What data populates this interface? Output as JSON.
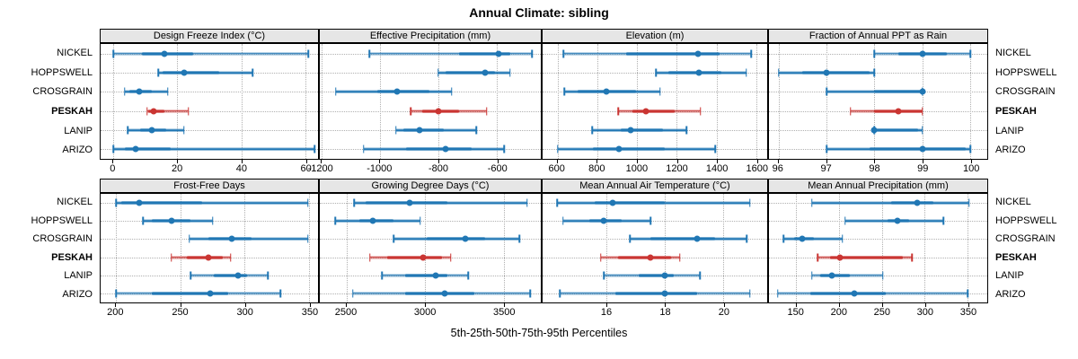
{
  "figure": {
    "title": "Annual Climate: sibling",
    "caption": "5th-25th-50th-75th-95th Percentiles"
  },
  "sites": [
    "NICKEL",
    "HOPPSWELL",
    "CROSGRAIN",
    "PESKAH",
    "LANIP",
    "ARIZO"
  ],
  "highlight_site": "PESKAH",
  "percentile_labels": [
    "q5",
    "q25",
    "q50",
    "q75",
    "q95"
  ],
  "colors": {
    "series": "#2077b4",
    "highlight": "#ca3532",
    "strip_bg": "#e6e6e6",
    "grid": "#b0b0b0"
  },
  "chart_data": [
    {
      "id": "design-freeze-index",
      "type": "interval",
      "title": "Design Freeze Index (°C)",
      "xlim": [
        -4,
        64
      ],
      "ticks": [
        0,
        20,
        40,
        60
      ],
      "rows": [
        {
          "site": "NICKEL",
          "values": [
            0,
            9,
            16,
            25,
            61
          ]
        },
        {
          "site": "HOPPSWELL",
          "values": [
            14,
            15.5,
            22,
            33,
            43.5
          ]
        },
        {
          "site": "CROSGRAIN",
          "values": [
            3.5,
            5,
            8,
            12,
            17
          ]
        },
        {
          "site": "PESKAH",
          "values": [
            10.5,
            11,
            12.5,
            16,
            23.5
          ]
        },
        {
          "site": "LANIP",
          "values": [
            4.5,
            8.5,
            12,
            16.5,
            22
          ]
        },
        {
          "site": "ARIZO",
          "values": [
            0,
            3.5,
            7,
            18,
            63
          ]
        }
      ]
    },
    {
      "id": "effective-precipitation",
      "type": "interval",
      "title": "Effective Precipitation (mm)",
      "xlim": [
        -1205,
        -450
      ],
      "ticks": [
        -1200,
        -1000,
        -800,
        -600
      ],
      "rows": [
        {
          "site": "NICKEL",
          "values": [
            -1035,
            -730,
            -595,
            -555,
            -480
          ]
        },
        {
          "site": "HOPPSWELL",
          "values": [
            -800,
            -775,
            -640,
            -605,
            -555
          ]
        },
        {
          "site": "CROSGRAIN",
          "values": [
            -1150,
            -1010,
            -940,
            -830,
            -755
          ]
        },
        {
          "site": "PESKAH",
          "values": [
            -895,
            -855,
            -800,
            -730,
            -635
          ]
        },
        {
          "site": "LANIP",
          "values": [
            -945,
            -920,
            -865,
            -780,
            -670
          ]
        },
        {
          "site": "ARIZO",
          "values": [
            -1055,
            -910,
            -775,
            -685,
            -575
          ]
        }
      ]
    },
    {
      "id": "elevation",
      "type": "interval",
      "title": "Elevation (m)",
      "xlim": [
        525,
        1655
      ],
      "ticks": [
        600,
        800,
        1000,
        1200,
        1400,
        1600
      ],
      "rows": [
        {
          "site": "NICKEL",
          "values": [
            630,
            945,
            1305,
            1415,
            1575
          ]
        },
        {
          "site": "HOPPSWELL",
          "values": [
            1095,
            1160,
            1310,
            1425,
            1550
          ]
        },
        {
          "site": "CROSGRAIN",
          "values": [
            635,
            700,
            845,
            995,
            1115
          ]
        },
        {
          "site": "PESKAH",
          "values": [
            905,
            975,
            1045,
            1190,
            1320
          ]
        },
        {
          "site": "LANIP",
          "values": [
            775,
            920,
            970,
            1130,
            1250
          ]
        },
        {
          "site": "ARIZO",
          "values": [
            600,
            780,
            910,
            1140,
            1395
          ]
        }
      ]
    },
    {
      "id": "fraction-annual-ppt-as-rain",
      "type": "interval",
      "title": "Fraction of Annual PPT as Rain",
      "xlim": [
        95.8,
        100.35
      ],
      "ticks": [
        96,
        97,
        98,
        99,
        100
      ],
      "rows": [
        {
          "site": "NICKEL",
          "values": [
            98,
            98.5,
            99,
            99.5,
            100
          ]
        },
        {
          "site": "HOPPSWELL",
          "values": [
            96,
            96.5,
            97,
            97.9,
            98
          ]
        },
        {
          "site": "CROSGRAIN",
          "values": [
            97,
            98,
            99,
            99,
            99
          ]
        },
        {
          "site": "PESKAH",
          "values": [
            97.5,
            98,
            98.5,
            99,
            99
          ]
        },
        {
          "site": "LANIP",
          "values": [
            98,
            98,
            98,
            98.9,
            99
          ]
        },
        {
          "site": "ARIZO",
          "values": [
            97,
            97.9,
            99,
            99.9,
            100
          ]
        }
      ]
    },
    {
      "id": "frost-free-days",
      "type": "interval",
      "title": "Frost-Free Days",
      "xlim": [
        188,
        357
      ],
      "ticks": [
        200,
        250,
        300,
        350
      ],
      "rows": [
        {
          "site": "NICKEL",
          "values": [
            200,
            204,
            218,
            267,
            349
          ]
        },
        {
          "site": "HOPPSWELL",
          "values": [
            221,
            228,
            243,
            258,
            275
          ]
        },
        {
          "site": "CROSGRAIN",
          "values": [
            257,
            272,
            290,
            305,
            349
          ]
        },
        {
          "site": "PESKAH",
          "values": [
            243,
            255,
            272,
            283,
            289
          ]
        },
        {
          "site": "LANIP",
          "values": [
            258,
            276,
            295,
            302,
            318
          ]
        },
        {
          "site": "ARIZO",
          "values": [
            200,
            228,
            273,
            287,
            328
          ]
        }
      ]
    },
    {
      "id": "growing-degree-days",
      "type": "interval",
      "title": "Growing Degree Days (°C)",
      "xlim": [
        2330,
        3737
      ],
      "ticks": [
        2500,
        3000,
        3500
      ],
      "rows": [
        {
          "site": "NICKEL",
          "values": [
            2550,
            2620,
            2900,
            3140,
            3650
          ]
        },
        {
          "site": "HOPPSWELL",
          "values": [
            2430,
            2580,
            2670,
            2800,
            2970
          ]
        },
        {
          "site": "CROSGRAIN",
          "values": [
            2800,
            3010,
            3255,
            3380,
            3600
          ]
        },
        {
          "site": "PESKAH",
          "values": [
            2650,
            2760,
            2985,
            3110,
            3165
          ]
        },
        {
          "site": "LANIP",
          "values": [
            2725,
            2875,
            3065,
            3140,
            3275
          ]
        },
        {
          "site": "ARIZO",
          "values": [
            2540,
            2875,
            3125,
            3315,
            3670
          ]
        }
      ]
    },
    {
      "id": "mean-annual-air-temperature",
      "type": "interval",
      "title": "Mean Annual Air Temperature (°C)",
      "xlim": [
        13.8,
        21.5
      ],
      "ticks": [
        16,
        18,
        20
      ],
      "rows": [
        {
          "site": "NICKEL",
          "values": [
            14.3,
            15.6,
            16.2,
            18.0,
            20.9
          ]
        },
        {
          "site": "HOPPSWELL",
          "values": [
            14.5,
            15.4,
            15.9,
            16.5,
            17.5
          ]
        },
        {
          "site": "CROSGRAIN",
          "values": [
            16.8,
            17.5,
            19.1,
            19.7,
            20.8
          ]
        },
        {
          "site": "PESKAH",
          "values": [
            15.8,
            16.4,
            17.5,
            18.2,
            18.5
          ]
        },
        {
          "site": "LANIP",
          "values": [
            15.9,
            17.1,
            18.0,
            18.3,
            19.2
          ]
        },
        {
          "site": "ARIZO",
          "values": [
            14.4,
            16.3,
            18.0,
            19.1,
            20.9
          ]
        }
      ]
    },
    {
      "id": "mean-annual-precipitation",
      "type": "interval",
      "title": "Mean Annual Precipitation (mm)",
      "xlim": [
        118,
        373
      ],
      "ticks": [
        150,
        200,
        250,
        300,
        350
      ],
      "rows": [
        {
          "site": "NICKEL",
          "values": [
            168,
            261,
            291,
            310,
            352
          ]
        },
        {
          "site": "HOPPSWELL",
          "values": [
            207,
            256,
            268,
            282,
            322
          ]
        },
        {
          "site": "CROSGRAIN",
          "values": [
            135,
            147,
            157,
            170,
            204
          ]
        },
        {
          "site": "PESKAH",
          "values": [
            175,
            189,
            201,
            274,
            285
          ]
        },
        {
          "site": "LANIP",
          "values": [
            168,
            178,
            191,
            212,
            251
          ]
        },
        {
          "site": "ARIZO",
          "values": [
            128,
            166,
            218,
            254,
            350
          ]
        }
      ]
    }
  ]
}
